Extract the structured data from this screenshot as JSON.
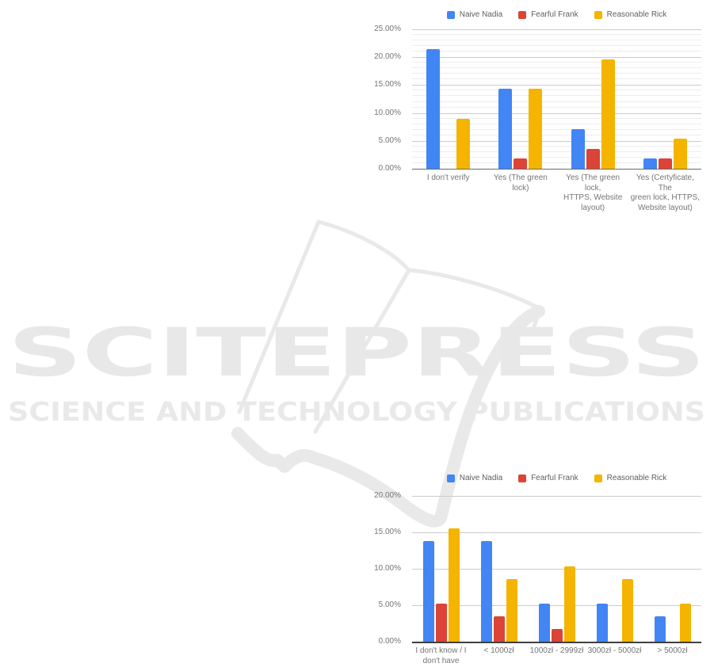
{
  "watermark": {
    "title": "SCITEPRESS",
    "subtitle": "SCIENCE AND TECHNOLOGY PUBLICATIONS",
    "text_color": "#e8e8e8",
    "graphic_color": "#e9e9e9",
    "graphic": "open-book-swoosh"
  },
  "series_colors": {
    "naive_nadia": "#4285f4",
    "fearful_frank": "#db4437",
    "reasonable_rick": "#f4b400"
  },
  "chart_data": [
    {
      "type": "bar",
      "title": "",
      "legend_position": "top",
      "grid": true,
      "categories": [
        "I don't verify",
        "Yes (The green lock)",
        "Yes (The green lock,\nHTTPS, Website\nlayout)",
        "Yes (Certyficate, The\ngreen lock, HTTPS,\nWebsite layout)"
      ],
      "series": [
        {
          "name": "Naive Nadia",
          "color": "#4285f4",
          "values": [
            21.43,
            14.29,
            7.14,
            1.79
          ]
        },
        {
          "name": "Fearful Frank",
          "color": "#db4437",
          "values": [
            0,
            1.79,
            3.57,
            1.79
          ]
        },
        {
          "name": "Reasonable Rick",
          "color": "#f4b400",
          "values": [
            8.93,
            14.29,
            19.64,
            5.36
          ]
        }
      ],
      "xlabel": "",
      "ylabel": "",
      "ylim": [
        0,
        25
      ],
      "ytick_step": 5,
      "minor_tick_step": 1,
      "ytick_labels": [
        "0.00%",
        "5.00%",
        "10.00%",
        "15.00%",
        "20.00%",
        "25.00%"
      ]
    },
    {
      "type": "bar",
      "title": "",
      "legend_position": "top",
      "grid": true,
      "categories": [
        "I don't know / I\ndon't have",
        "< 1000zł",
        "1000zł - 2999zł",
        "3000zł - 5000zł",
        "> 5000zł"
      ],
      "series": [
        {
          "name": "Naive Nadia",
          "color": "#4285f4",
          "values": [
            13.79,
            13.79,
            5.17,
            5.17,
            3.45
          ]
        },
        {
          "name": "Fearful Frank",
          "color": "#db4437",
          "values": [
            5.17,
            3.45,
            1.72,
            0,
            0
          ]
        },
        {
          "name": "Reasonable Rick",
          "color": "#f4b400",
          "values": [
            15.52,
            8.62,
            10.34,
            8.62,
            5.17
          ]
        }
      ],
      "xlabel": "",
      "ylabel": "",
      "ylim": [
        0,
        20
      ],
      "ytick_step": 5,
      "minor_tick_step": 0,
      "ytick_labels": [
        "0.00%",
        "5.00%",
        "10.00%",
        "15.00%",
        "20.00%"
      ]
    }
  ]
}
